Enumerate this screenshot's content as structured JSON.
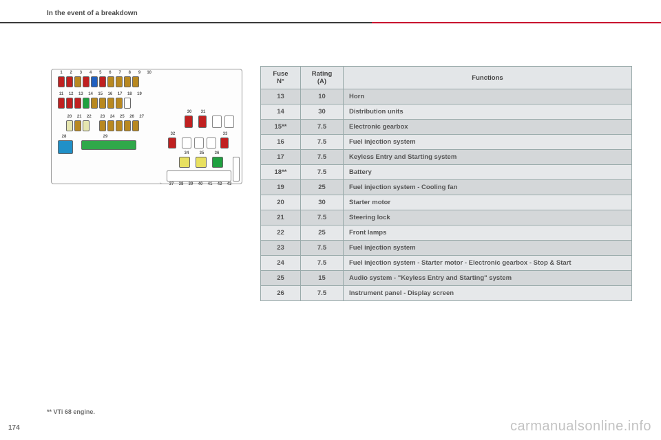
{
  "header": {
    "section_title": "In the event of a breakdown"
  },
  "page_number": "174",
  "footnote": "** VTi 68 engine.",
  "watermark": "carmanualsonline.info",
  "table": {
    "columns": [
      "Fuse\nN°",
      "Rating\n(A)",
      "Functions"
    ],
    "rows": [
      [
        "13",
        "10",
        "Horn"
      ],
      [
        "14",
        "30",
        "Distribution units"
      ],
      [
        "15**",
        "7.5",
        "Electronic gearbox"
      ],
      [
        "16",
        "7.5",
        "Fuel injection system"
      ],
      [
        "17",
        "7.5",
        "Keyless Entry and Starting system"
      ],
      [
        "18**",
        "7.5",
        "Battery"
      ],
      [
        "19",
        "25",
        "Fuel injection system - Cooling fan"
      ],
      [
        "20",
        "30",
        "Starter motor"
      ],
      [
        "21",
        "7.5",
        "Steering lock"
      ],
      [
        "22",
        "25",
        "Front lamps"
      ],
      [
        "23",
        "7.5",
        "Fuel injection system"
      ],
      [
        "24",
        "7.5",
        "Fuel injection system - Starter motor - Electronic gearbox - Stop & Start"
      ],
      [
        "25",
        "15",
        "Audio system - \"Keyless Entry and Starting\" system"
      ],
      [
        "26",
        "7.5",
        "Instrument panel - Display screen"
      ]
    ],
    "header_bg": "#e3e6e8",
    "row_odd_bg": "#d4d7d9",
    "row_even_bg": "#e6e8ea",
    "border_color": "#9aa"
  },
  "fusebox": {
    "row1": {
      "labels": [
        "1",
        "2",
        "3",
        "4",
        "5",
        "6",
        "7",
        "8",
        "9",
        "10"
      ],
      "colors": [
        "#c02020",
        "#c02020",
        "#b88820",
        "#c02020",
        "#2060c0",
        "#c02020",
        "#b88820",
        "#b88820",
        "#b88820",
        "#b88820"
      ]
    },
    "row2": {
      "labels": [
        "11",
        "12",
        "13",
        "14",
        "15",
        "16",
        "17",
        "18",
        "19"
      ],
      "colors": [
        "#c02020",
        "#c02020",
        "#c02020",
        "#20a040",
        "#b88820",
        "#b88820",
        "#b88820",
        "#b88820",
        "#ffffff"
      ]
    },
    "row3a": {
      "labels": [
        "20",
        "21",
        "22"
      ],
      "colors": [
        "#e6e6b0",
        "#b88820",
        "#e6e6b0"
      ]
    },
    "row3b": {
      "labels": [
        "23",
        "24",
        "25",
        "26",
        "27"
      ],
      "colors": [
        "#b88820",
        "#b88820",
        "#b88820",
        "#b88820",
        "#b88820"
      ]
    },
    "big28": {
      "label": "28",
      "color": "#2090c8"
    },
    "big29": {
      "label": "29",
      "color": "#30a84a"
    },
    "f30": {
      "label": "30",
      "color": "#c02020"
    },
    "f31": {
      "label": "31",
      "color": "#c02020"
    },
    "f32": {
      "label": "32",
      "color": "#c02020"
    },
    "f33": {
      "label": "33",
      "color": "#c02020"
    },
    "row_mid": {
      "labels": [
        "34",
        "35",
        "36"
      ],
      "colors": [
        "#e8e060",
        "#e8e060",
        "#20a040"
      ]
    },
    "row_bot": {
      "labels": [
        "37",
        "38",
        "39",
        "40",
        "41",
        "42",
        "43"
      ]
    }
  }
}
